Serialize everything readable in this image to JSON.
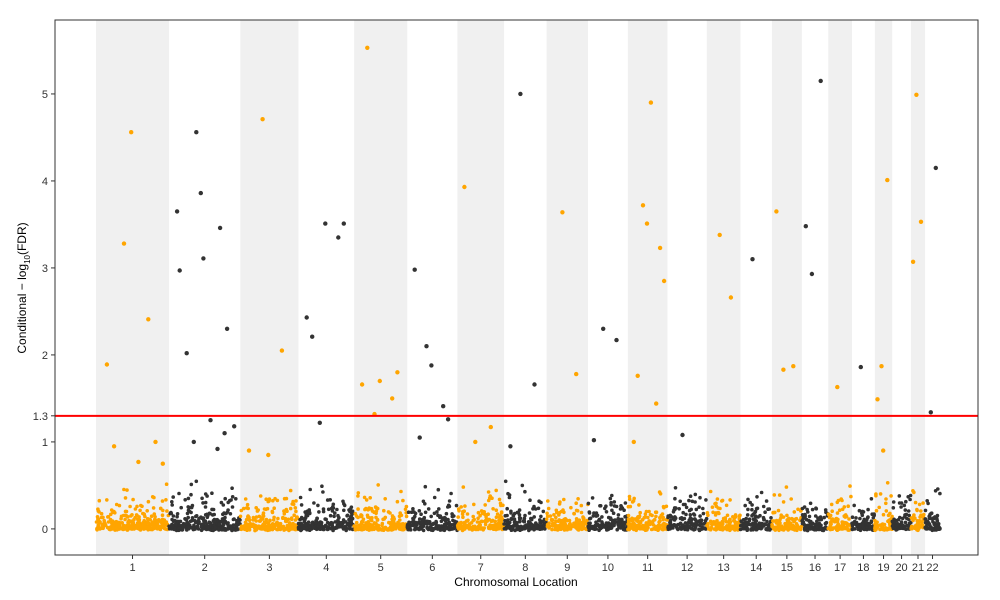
{
  "chart_data": {
    "type": "scatter",
    "title": "",
    "xlabel": "Chromosomal Location",
    "ylabel": {
      "prefix": "Conditional − log",
      "sub": "10",
      "suffix": "(FDR)"
    },
    "ylim": [
      -0.3,
      5.85
    ],
    "y_ticks": [
      0,
      1,
      2,
      3,
      4,
      5
    ],
    "threshold": {
      "value": 1.3,
      "label": "1.3",
      "color": "#ff0000"
    },
    "chromosomes": [
      {
        "label": "1",
        "start": 0,
        "end": 249
      },
      {
        "label": "2",
        "start": 249,
        "end": 492
      },
      {
        "label": "3",
        "start": 492,
        "end": 690
      },
      {
        "label": "4",
        "start": 690,
        "end": 880
      },
      {
        "label": "5",
        "start": 880,
        "end": 1061
      },
      {
        "label": "6",
        "start": 1061,
        "end": 1232
      },
      {
        "label": "7",
        "start": 1232,
        "end": 1391
      },
      {
        "label": "8",
        "start": 1391,
        "end": 1536
      },
      {
        "label": "9",
        "start": 1536,
        "end": 1677
      },
      {
        "label": "10",
        "start": 1677,
        "end": 1813
      },
      {
        "label": "11",
        "start": 1813,
        "end": 1948
      },
      {
        "label": "12",
        "start": 1948,
        "end": 2082
      },
      {
        "label": "13",
        "start": 2082,
        "end": 2197
      },
      {
        "label": "14",
        "start": 2197,
        "end": 2304
      },
      {
        "label": "15",
        "start": 2304,
        "end": 2406
      },
      {
        "label": "16",
        "start": 2406,
        "end": 2496
      },
      {
        "label": "17",
        "start": 2496,
        "end": 2577
      },
      {
        "label": "18",
        "start": 2577,
        "end": 2655
      },
      {
        "label": "19",
        "start": 2655,
        "end": 2714
      },
      {
        "label": "20",
        "start": 2714,
        "end": 2778
      },
      {
        "label": "21",
        "start": 2778,
        "end": 2826
      },
      {
        "label": "22",
        "start": 2826,
        "end": 2877
      }
    ],
    "colors": {
      "odd": "#ffa500",
      "even": "#333333",
      "band": "#f0f0f0"
    },
    "noise_points_per_chromosome": "estimated dense background of values between 0 and about 0.9",
    "points": [
      [
        1,
        3.28
      ],
      [
        1,
        2.41
      ],
      [
        1,
        1.89
      ],
      [
        1,
        4.56
      ],
      [
        1,
        1.0
      ],
      [
        1,
        0.95
      ],
      [
        1,
        0.77
      ],
      [
        1,
        0.75
      ],
      [
        2,
        4.56
      ],
      [
        2,
        3.46
      ],
      [
        2,
        2.97
      ],
      [
        2,
        3.11
      ],
      [
        2,
        2.3
      ],
      [
        2,
        2.02
      ],
      [
        2,
        1.25
      ],
      [
        2,
        1.18
      ],
      [
        2,
        1.0
      ],
      [
        2,
        0.92
      ],
      [
        2,
        3.65
      ],
      [
        2,
        3.86
      ],
      [
        2,
        1.1
      ],
      [
        3,
        4.71
      ],
      [
        3,
        2.05
      ],
      [
        3,
        0.9
      ],
      [
        3,
        0.85
      ],
      [
        4,
        1.22
      ],
      [
        4,
        3.35
      ],
      [
        4,
        2.43
      ],
      [
        4,
        3.51
      ],
      [
        4,
        3.51
      ],
      [
        4,
        2.21
      ],
      [
        5,
        1.32
      ],
      [
        5,
        1.5
      ],
      [
        5,
        1.66
      ],
      [
        5,
        1.7
      ],
      [
        5,
        1.8
      ],
      [
        5,
        5.53
      ],
      [
        6,
        2.1
      ],
      [
        6,
        1.41
      ],
      [
        6,
        2.98
      ],
      [
        6,
        1.88
      ],
      [
        6,
        1.26
      ],
      [
        6,
        1.05
      ],
      [
        7,
        1.0
      ],
      [
        7,
        1.17
      ],
      [
        7,
        3.93
      ],
      [
        8,
        5.0
      ],
      [
        8,
        1.66
      ],
      [
        8,
        0.95
      ],
      [
        9,
        3.64
      ],
      [
        9,
        1.78
      ],
      [
        10,
        2.3
      ],
      [
        10,
        2.17
      ],
      [
        10,
        1.02
      ],
      [
        11,
        3.72
      ],
      [
        11,
        1.44
      ],
      [
        11,
        1.0
      ],
      [
        11,
        3.51
      ],
      [
        11,
        3.23
      ],
      [
        11,
        1.76
      ],
      [
        11,
        4.9
      ],
      [
        11,
        2.85
      ],
      [
        12,
        1.08
      ],
      [
        13,
        3.38
      ],
      [
        13,
        2.66
      ],
      [
        14,
        3.1
      ],
      [
        15,
        1.83
      ],
      [
        15,
        1.87
      ],
      [
        15,
        3.65
      ],
      [
        16,
        2.93
      ],
      [
        16,
        5.15
      ],
      [
        16,
        3.48
      ],
      [
        17,
        1.63
      ],
      [
        18,
        1.86
      ],
      [
        19,
        1.87
      ],
      [
        19,
        4.01
      ],
      [
        19,
        1.49
      ],
      [
        19,
        0.9
      ],
      [
        21,
        4.99
      ],
      [
        21,
        3.53
      ],
      [
        21,
        3.07
      ],
      [
        22,
        1.34
      ],
      [
        22,
        4.15
      ]
    ]
  }
}
